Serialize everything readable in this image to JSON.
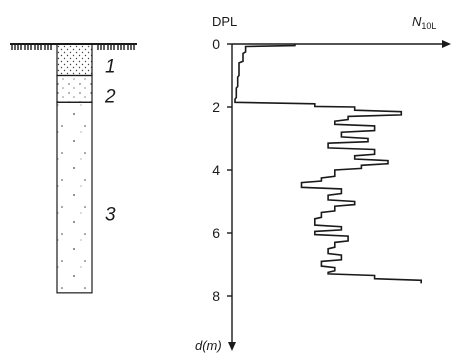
{
  "chart_data": {
    "type": "line",
    "title": "DPL",
    "xlabel": "N",
    "xlabel_sub": "10L",
    "ylabel": "d(m)",
    "ylim": [
      0,
      9
    ],
    "y_inverted": true,
    "y_ticks": [
      0,
      2,
      4,
      6,
      8
    ],
    "grid": false,
    "series": [
      {
        "points": [
          [
            45,
            0
          ],
          [
            45,
            0.05
          ],
          [
            8,
            0.08
          ],
          [
            8,
            0.25
          ],
          [
            6,
            0.3
          ],
          [
            6,
            0.55
          ],
          [
            3,
            0.6
          ],
          [
            3,
            1.0
          ],
          [
            2,
            1.05
          ],
          [
            2,
            1.35
          ],
          [
            1,
            1.4
          ],
          [
            1,
            1.7
          ],
          [
            0,
            1.75
          ],
          [
            0,
            1.85
          ],
          [
            60,
            1.9
          ],
          [
            60,
            1.98
          ],
          [
            90,
            2.0
          ],
          [
            90,
            2.1
          ],
          [
            125,
            2.15
          ],
          [
            125,
            2.25
          ],
          [
            85,
            2.3
          ],
          [
            85,
            2.4
          ],
          [
            75,
            2.45
          ],
          [
            75,
            2.55
          ],
          [
            105,
            2.6
          ],
          [
            105,
            2.75
          ],
          [
            80,
            2.8
          ],
          [
            80,
            2.95
          ],
          [
            100,
            3.0
          ],
          [
            100,
            3.1
          ],
          [
            70,
            3.15
          ],
          [
            70,
            3.3
          ],
          [
            105,
            3.35
          ],
          [
            105,
            3.5
          ],
          [
            90,
            3.55
          ],
          [
            90,
            3.65
          ],
          [
            115,
            3.7
          ],
          [
            115,
            3.8
          ],
          [
            95,
            3.85
          ],
          [
            95,
            3.95
          ],
          [
            75,
            4.0
          ],
          [
            75,
            4.2
          ],
          [
            65,
            4.25
          ],
          [
            65,
            4.35
          ],
          [
            50,
            4.4
          ],
          [
            50,
            4.55
          ],
          [
            80,
            4.6
          ],
          [
            80,
            4.75
          ],
          [
            70,
            4.8
          ],
          [
            70,
            4.95
          ],
          [
            90,
            5.0
          ],
          [
            90,
            5.1
          ],
          [
            75,
            5.15
          ],
          [
            75,
            5.3
          ],
          [
            65,
            5.35
          ],
          [
            65,
            5.5
          ],
          [
            60,
            5.55
          ],
          [
            60,
            5.75
          ],
          [
            80,
            5.8
          ],
          [
            80,
            5.9
          ],
          [
            60,
            5.95
          ],
          [
            60,
            6.05
          ],
          [
            85,
            6.1
          ],
          [
            85,
            6.25
          ],
          [
            75,
            6.3
          ],
          [
            75,
            6.45
          ],
          [
            70,
            6.5
          ],
          [
            70,
            6.65
          ],
          [
            80,
            6.7
          ],
          [
            80,
            6.85
          ],
          [
            65,
            6.9
          ],
          [
            65,
            7.05
          ],
          [
            75,
            7.1
          ],
          [
            75,
            7.2
          ],
          [
            70,
            7.25
          ],
          [
            70,
            7.3
          ],
          [
            105,
            7.35
          ],
          [
            105,
            7.45
          ],
          [
            140,
            7.5
          ],
          [
            140,
            7.6
          ]
        ]
      }
    ]
  },
  "soil_column": {
    "layers": [
      {
        "label": "1",
        "top_m": 0,
        "bottom_m": 1.0,
        "fill": "dense-dots"
      },
      {
        "label": "2",
        "top_m": 1.0,
        "bottom_m": 1.85,
        "fill": "sparse-dots"
      },
      {
        "label": "3",
        "top_m": 1.85,
        "bottom_m": 7.9,
        "fill": "scattered-dots"
      }
    ]
  }
}
